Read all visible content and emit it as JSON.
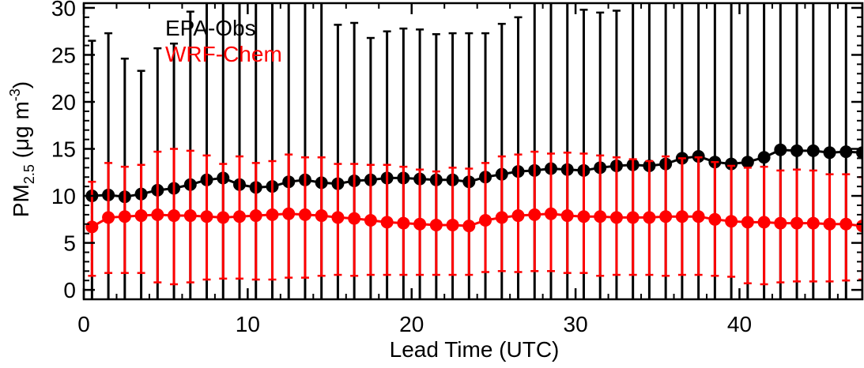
{
  "chart_data": {
    "type": "line",
    "title": "",
    "xlabel": "Lead Time (UTC)",
    "ylabel_main": "PM",
    "ylabel_sub": "2.5",
    "ylabel_unit_prefix": " (μg m",
    "ylabel_unit_sup": "-3",
    "ylabel_unit_suffix": ")",
    "xlim": [
      0,
      47.5
    ],
    "ylim": [
      -1,
      30.5
    ],
    "xticks": [
      0,
      10,
      20,
      30,
      40
    ],
    "xtick_labels": [
      "0",
      "10",
      "20",
      "30",
      "40"
    ],
    "yticks": [
      0,
      5,
      10,
      15,
      20,
      25,
      30
    ],
    "ytick_labels": [
      "0",
      "5",
      "10",
      "15",
      "20",
      "25",
      "30"
    ],
    "grid": false,
    "legend_position": "top-left",
    "x": [
      0.5,
      1.5,
      2.5,
      3.5,
      4.5,
      5.5,
      6.5,
      7.5,
      8.5,
      9.5,
      10.5,
      11.5,
      12.5,
      13.5,
      14.5,
      15.5,
      16.5,
      17.5,
      18.5,
      19.5,
      20.5,
      21.5,
      22.5,
      23.5,
      24.5,
      25.5,
      26.5,
      27.5,
      28.5,
      29.5,
      30.5,
      31.5,
      32.5,
      33.5,
      34.5,
      35.5,
      36.5,
      37.5,
      38.5,
      39.5,
      40.5,
      41.5,
      42.5,
      43.5,
      44.5,
      45.5,
      46.5,
      47.5
    ],
    "series": [
      {
        "name": "EPA-Obs",
        "color": "#000000",
        "values": [
          10.0,
          10.1,
          9.9,
          10.2,
          10.6,
          10.8,
          11.2,
          11.7,
          11.9,
          11.2,
          10.9,
          11.0,
          11.5,
          11.7,
          11.4,
          11.3,
          11.6,
          11.7,
          11.9,
          11.9,
          11.8,
          11.7,
          11.7,
          11.5,
          12.0,
          12.3,
          12.6,
          12.7,
          12.9,
          12.8,
          12.7,
          13.0,
          13.2,
          13.3,
          13.2,
          13.4,
          14.0,
          14.2,
          13.6,
          13.4,
          13.6,
          14.1,
          14.9,
          14.8,
          14.8,
          14.6,
          14.7,
          14.6
        ],
        "err_upper": [
          26.5,
          27.3,
          24.6,
          23.3,
          25.7,
          26.2,
          29.6,
          31.0,
          31.0,
          31.0,
          31.0,
          31.0,
          31.0,
          31.0,
          31.0,
          28.2,
          28.4,
          26.8,
          27.5,
          27.8,
          27.7,
          27.2,
          27.3,
          27.3,
          27.3,
          28.3,
          29.0,
          31.0,
          31.0,
          31.0,
          29.8,
          29.5,
          29.7,
          31.0,
          31.0,
          31.0,
          31.0,
          31.0,
          31.0,
          31.0,
          31.0,
          31.0,
          31.0,
          31.0,
          31.0,
          31.0,
          31.0,
          31.0
        ],
        "err_lower": [
          -1.0,
          -1.0,
          -1.0,
          -1.0,
          -1.0,
          -1.0,
          -1.0,
          -1.0,
          -1.0,
          -1.0,
          -1.0,
          -1.0,
          -1.0,
          -1.0,
          -1.0,
          -1.0,
          -1.0,
          -1.0,
          -1.0,
          -1.0,
          -1.0,
          -1.0,
          -1.0,
          -1.0,
          -1.0,
          -1.0,
          -1.0,
          -1.0,
          -1.0,
          -1.0,
          -1.0,
          -1.0,
          -1.0,
          -1.0,
          -1.0,
          -1.0,
          -1.0,
          -1.0,
          -1.0,
          -1.0,
          -1.0,
          -1.0,
          -1.0,
          -1.0,
          -1.0,
          -1.0,
          -1.0,
          -1.0
        ],
        "upper_caps": [
          true,
          true,
          true,
          true,
          true,
          true,
          true,
          false,
          false,
          false,
          false,
          false,
          false,
          false,
          false,
          true,
          true,
          true,
          true,
          true,
          true,
          true,
          true,
          true,
          true,
          true,
          true,
          false,
          false,
          false,
          true,
          true,
          true,
          false,
          false,
          false,
          false,
          false,
          false,
          false,
          false,
          false,
          false,
          false,
          false,
          false,
          false,
          false
        ],
        "lower_caps": false
      },
      {
        "name": "WRF-Chem",
        "color": "#ff0000",
        "values": [
          6.7,
          7.7,
          7.8,
          7.9,
          8.0,
          7.9,
          7.9,
          7.8,
          7.7,
          7.8,
          7.9,
          8.0,
          8.1,
          8.0,
          7.9,
          7.7,
          7.6,
          7.4,
          7.2,
          7.1,
          7.0,
          6.9,
          6.9,
          6.8,
          7.4,
          7.7,
          7.9,
          8.0,
          8.1,
          7.9,
          7.8,
          7.8,
          7.7,
          7.7,
          7.7,
          7.8,
          7.8,
          7.8,
          7.5,
          7.3,
          7.2,
          7.2,
          7.1,
          7.1,
          7.1,
          7.0,
          7.0,
          6.8
        ],
        "err_upper": [
          11.5,
          13.5,
          13.1,
          13.3,
          14.7,
          15.0,
          14.8,
          14.3,
          13.4,
          14.2,
          13.5,
          13.7,
          14.4,
          14.1,
          14.1,
          13.4,
          13.4,
          13.3,
          13.3,
          13.1,
          12.8,
          12.6,
          13.0,
          12.9,
          13.5,
          14.2,
          14.4,
          14.7,
          14.5,
          14.6,
          14.5,
          14.3,
          14.1,
          13.9,
          13.7,
          14.2,
          14.0,
          14.1,
          13.6,
          13.2,
          13.0,
          13.1,
          12.7,
          12.8,
          12.7,
          12.3,
          12.3,
          12.0
        ],
        "err_lower": [
          1.5,
          1.8,
          1.8,
          1.8,
          0.8,
          0.6,
          0.8,
          1.1,
          1.2,
          1.2,
          1.1,
          1.1,
          1.3,
          1.3,
          1.5,
          1.6,
          1.5,
          1.6,
          1.6,
          1.6,
          1.6,
          1.6,
          1.6,
          1.6,
          1.9,
          2.0,
          1.9,
          2.0,
          2.0,
          1.8,
          1.8,
          1.5,
          1.6,
          1.6,
          1.6,
          1.5,
          1.6,
          1.6,
          1.5,
          1.4,
          0.7,
          0.6,
          0.8,
          0.9,
          0.9,
          0.9,
          1.0,
          1.1
        ],
        "upper_caps": true,
        "lower_caps": true
      }
    ],
    "legend": [
      {
        "label": "EPA-Obs",
        "color": "#000000"
      },
      {
        "label": "WRF-Chem",
        "color": "#ff0000"
      }
    ]
  }
}
